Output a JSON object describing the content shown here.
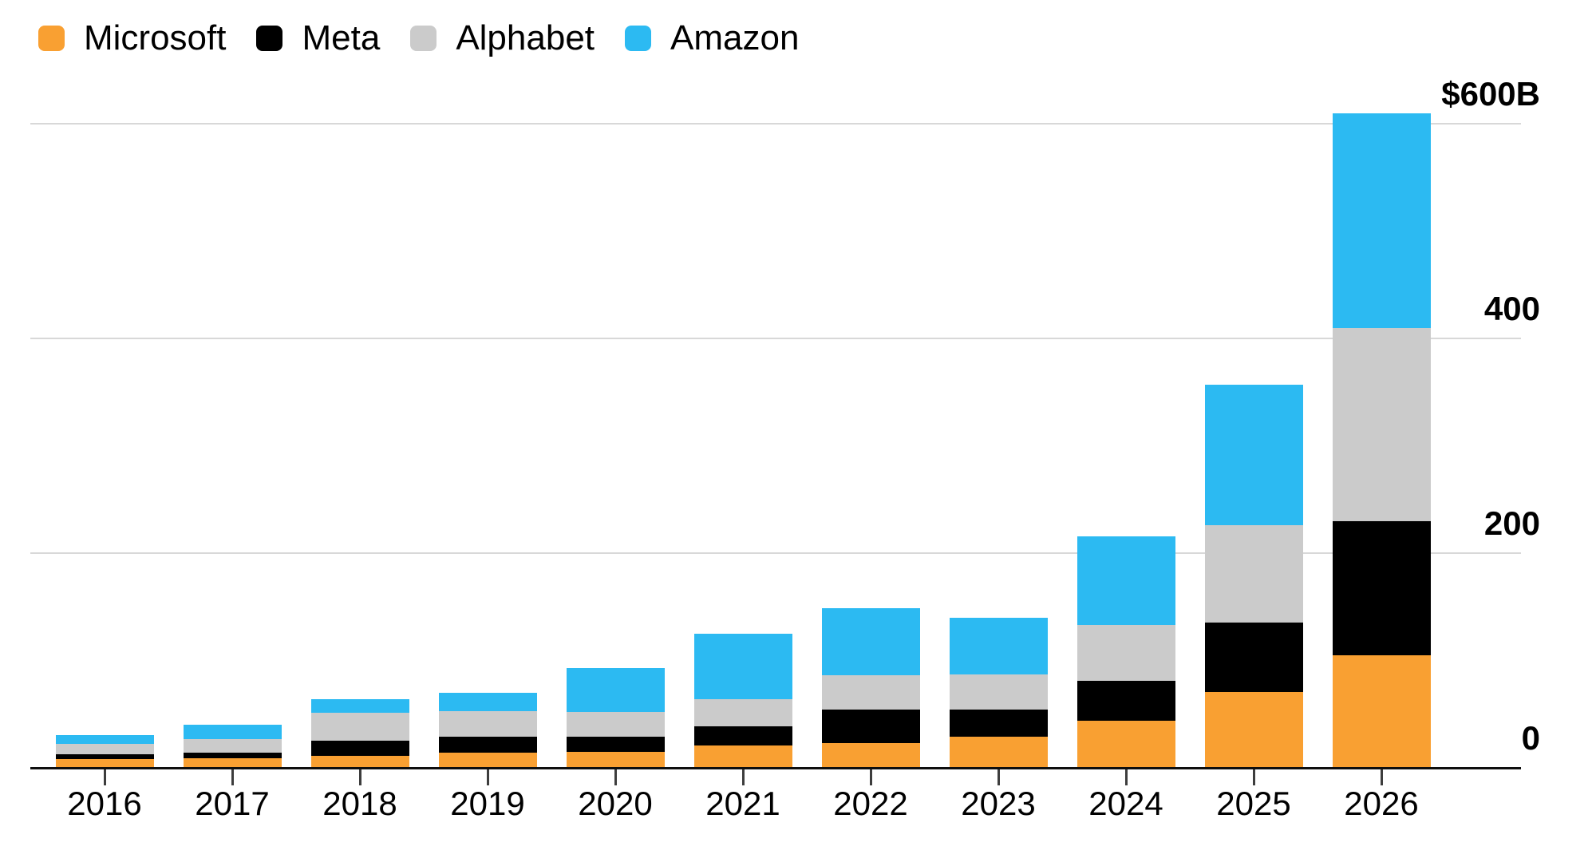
{
  "chart_data": {
    "type": "bar",
    "stacked": true,
    "title": "",
    "xlabel": "",
    "ylabel": "",
    "unit_label": "$600B",
    "categories": [
      "2016",
      "2017",
      "2018",
      "2019",
      "2020",
      "2021",
      "2022",
      "2023",
      "2024",
      "2025",
      "2026"
    ],
    "series": [
      {
        "name": "Microsoft",
        "color": "#F9A032",
        "values": [
          8,
          9,
          11,
          14,
          15,
          21,
          23,
          29,
          44,
          71,
          105
        ]
      },
      {
        "name": "Meta",
        "color": "#000000",
        "values": [
          4.5,
          5,
          14,
          15,
          14,
          18,
          31,
          25,
          37,
          64,
          125
        ]
      },
      {
        "name": "Alphabet",
        "color": "#CBCBCB",
        "values": [
          10,
          13,
          26,
          24,
          23,
          25,
          32,
          33,
          52,
          91,
          180
        ]
      },
      {
        "name": "Amazon",
        "color": "#2CBAF2",
        "values": [
          8,
          13,
          13,
          17,
          41,
          61,
          63,
          53,
          83,
          131,
          200
        ]
      }
    ],
    "totals": [
      30.5,
      40,
      64,
      70,
      93,
      125,
      149,
      140,
      216,
      357,
      610
    ],
    "y_ticks": [
      {
        "label": "$600B",
        "value": 600
      },
      {
        "label": "400",
        "value": 400
      },
      {
        "label": "200",
        "value": 200
      },
      {
        "label": "0",
        "value": 0
      }
    ],
    "ylim": [
      0,
      620
    ],
    "grid": "horizontal",
    "legend_position": "top-left",
    "tick_label_side": "right"
  },
  "styles": {
    "gridline_color": "#d8d8d8",
    "axis_color": "#0e0e0e",
    "tick_mark_color": "#3d3d3d",
    "text_color": "#000000",
    "background": "#ffffff"
  }
}
